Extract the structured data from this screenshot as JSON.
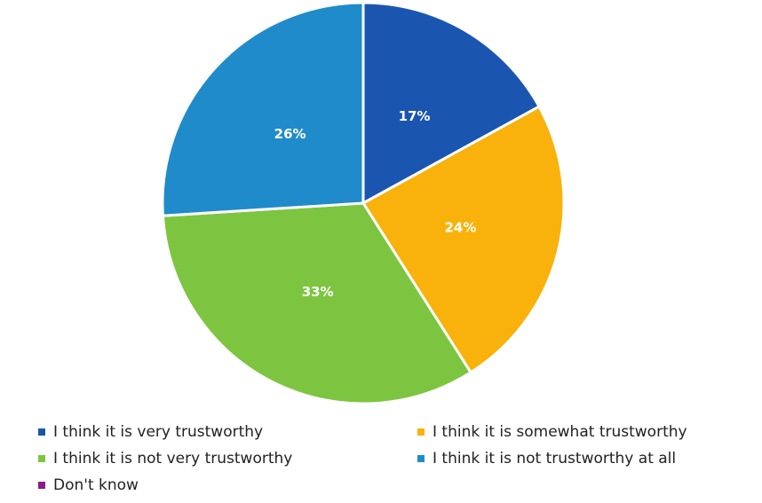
{
  "chart_data": {
    "type": "pie",
    "categories": [
      "I think it is very trustworthy",
      "I think it is somewhat trustworthy",
      "I think it is not very trustworthy",
      "I think it is not trustworthy at all",
      "Don't know"
    ],
    "values": [
      17,
      24,
      33,
      26,
      0
    ],
    "value_labels": [
      "17%",
      "24%",
      "33%",
      "26%",
      null
    ],
    "colors": [
      "#1a56b0",
      "#f9b20c",
      "#7dc540",
      "#1f8bca",
      "#8b1a8b"
    ]
  }
}
